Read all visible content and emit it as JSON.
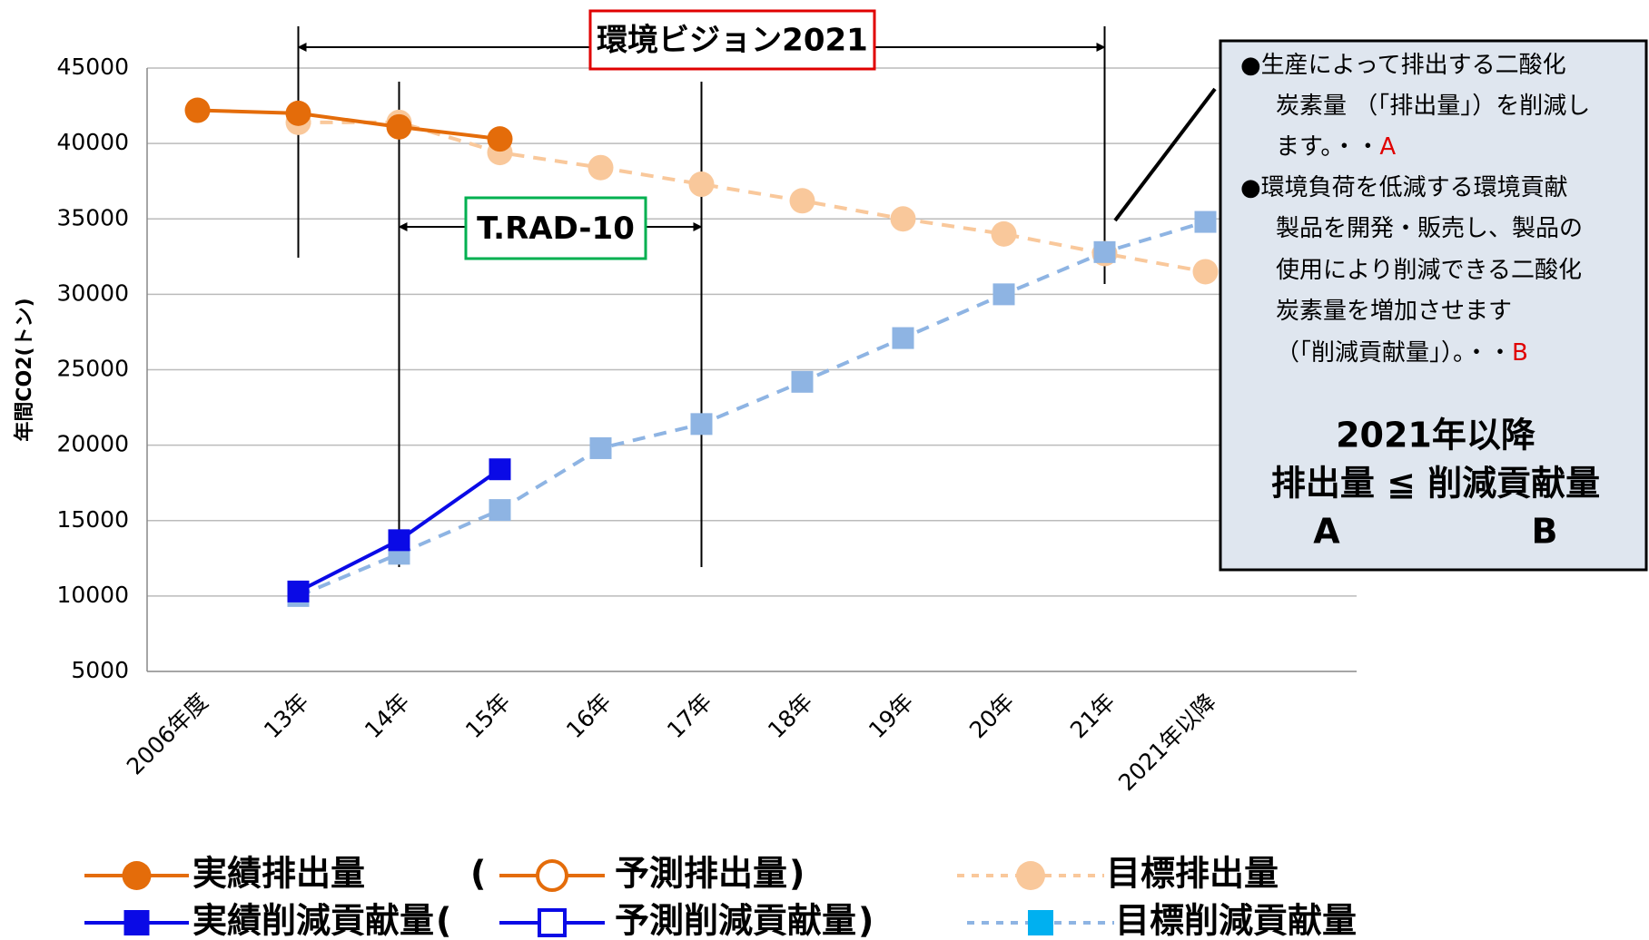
{
  "chart_data": {
    "type": "line",
    "ylabel": "年間CO2(トン)",
    "categories": [
      "2006年度",
      "13年",
      "14年",
      "15年",
      "16年",
      "17年",
      "18年",
      "19年",
      "20年",
      "21年",
      "2021年以降"
    ],
    "ylim": [
      5000,
      45000
    ],
    "yticks": [
      5000,
      10000,
      15000,
      20000,
      25000,
      30000,
      35000,
      40000,
      45000
    ],
    "grid": true,
    "series": [
      {
        "name": "実績排出量",
        "color": "#e46c0a",
        "marker": "circle",
        "filled": true,
        "dashed": false,
        "values": [
          42200,
          42000,
          41100,
          40300,
          null,
          null,
          null,
          null,
          null,
          null,
          null
        ]
      },
      {
        "name": "予測排出量",
        "color": "#e46c0a",
        "marker": "circle",
        "filled": false,
        "dashed": false,
        "values": [
          null,
          null,
          null,
          null,
          null,
          null,
          null,
          null,
          null,
          null,
          null
        ]
      },
      {
        "name": "目標排出量",
        "color": "#f9c89b",
        "marker": "circle",
        "filled": true,
        "dashed": true,
        "values": [
          null,
          41400,
          41400,
          39400,
          38400,
          37300,
          36200,
          35000,
          34000,
          32700,
          31500
        ]
      },
      {
        "name": "実績削減貢献量",
        "color": "#0a0ae6",
        "marker": "square",
        "filled": true,
        "dashed": false,
        "values": [
          null,
          10300,
          13700,
          18400,
          null,
          null,
          null,
          null,
          null,
          null,
          null
        ]
      },
      {
        "name": "予測削減貢献量",
        "color": "#0a0ae6",
        "marker": "square",
        "filled": false,
        "dashed": false,
        "values": [
          null,
          null,
          null,
          null,
          null,
          null,
          null,
          null,
          null,
          null,
          null
        ]
      },
      {
        "name": "目標削減貢献量",
        "color": "#8eb4e3",
        "marker": "square",
        "filled": true,
        "dashed": true,
        "values": [
          null,
          10000,
          12800,
          15700,
          19800,
          21400,
          24200,
          27100,
          30000,
          32800,
          34800
        ]
      }
    ],
    "legend_parens": [
      "(",
      ")"
    ],
    "annotations": [
      "環境ビジョン2021",
      "T.RAD-10"
    ],
    "box": {
      "items": [
        {
          "lines": [
            "●生産によって排出する二酸化",
            "炭素量 （「排出量」）を削減し",
            "ます。・・"
          ],
          "tag": "A"
        },
        {
          "lines": [
            "●環境負荷を低減する環境貢献",
            "製品を開発・販売し、製品の",
            "使用により削減できる二酸化",
            "炭素量を増加させます",
            "（「削減貢献量」）。・・"
          ],
          "tag": "B"
        }
      ],
      "heading": "2021年以降",
      "relation": "排出量 ≦ 削減貢献量",
      "left": "A",
      "right": "B"
    }
  }
}
